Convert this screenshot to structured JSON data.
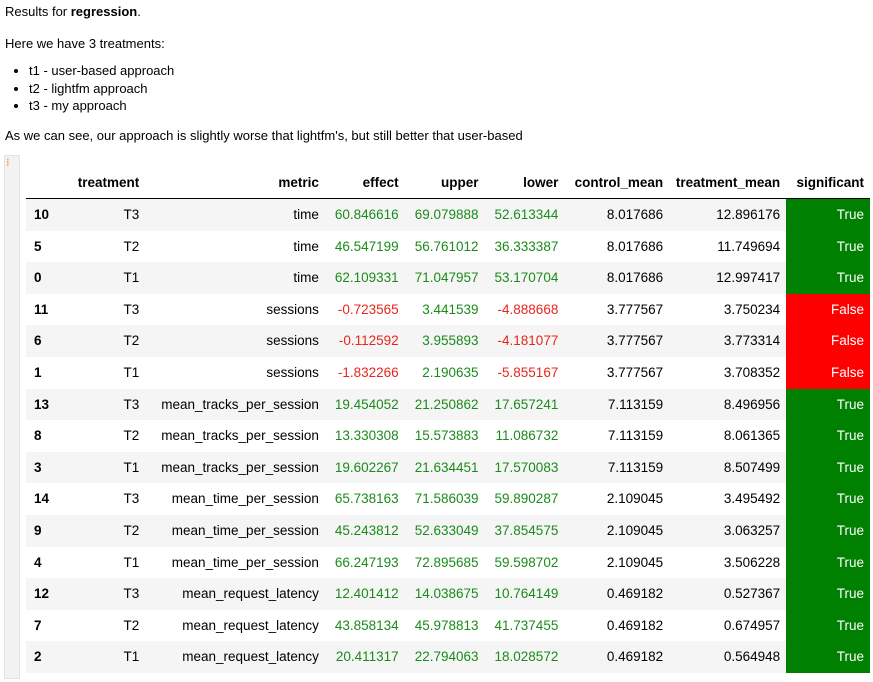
{
  "intro": {
    "line1_prefix": "Results for ",
    "line1_bold": "regression",
    "line1_suffix": ".",
    "line2": "Here we have 3 treatments:",
    "treatments": [
      "t1 - user-based approach",
      "t2 - lightfm approach",
      "t3 - my approach"
    ],
    "line3": "As we can see, our approach is slightly worse that lightfm's, but still better that user-based"
  },
  "colors": {
    "positive": "#1a8c1a",
    "negative": "#e8261c",
    "significant_true": "#008000",
    "significant_false": "#ff0000"
  },
  "table": {
    "headers": [
      "",
      "treatment",
      "metric",
      "effect",
      "upper",
      "lower",
      "control_mean",
      "treatment_mean",
      "significant"
    ],
    "rows": [
      {
        "idx": "10",
        "treatment": "T3",
        "metric": "time",
        "effect": "60.846616",
        "upper": "69.079888",
        "lower": "52.613344",
        "control_mean": "8.017686",
        "treatment_mean": "12.896176",
        "significant": "True"
      },
      {
        "idx": "5",
        "treatment": "T2",
        "metric": "time",
        "effect": "46.547199",
        "upper": "56.761012",
        "lower": "36.333387",
        "control_mean": "8.017686",
        "treatment_mean": "11.749694",
        "significant": "True"
      },
      {
        "idx": "0",
        "treatment": "T1",
        "metric": "time",
        "effect": "62.109331",
        "upper": "71.047957",
        "lower": "53.170704",
        "control_mean": "8.017686",
        "treatment_mean": "12.997417",
        "significant": "True"
      },
      {
        "idx": "11",
        "treatment": "T3",
        "metric": "sessions",
        "effect": "-0.723565",
        "upper": "3.441539",
        "lower": "-4.888668",
        "control_mean": "3.777567",
        "treatment_mean": "3.750234",
        "significant": "False"
      },
      {
        "idx": "6",
        "treatment": "T2",
        "metric": "sessions",
        "effect": "-0.112592",
        "upper": "3.955893",
        "lower": "-4.181077",
        "control_mean": "3.777567",
        "treatment_mean": "3.773314",
        "significant": "False"
      },
      {
        "idx": "1",
        "treatment": "T1",
        "metric": "sessions",
        "effect": "-1.832266",
        "upper": "2.190635",
        "lower": "-5.855167",
        "control_mean": "3.777567",
        "treatment_mean": "3.708352",
        "significant": "False"
      },
      {
        "idx": "13",
        "treatment": "T3",
        "metric": "mean_tracks_per_session",
        "effect": "19.454052",
        "upper": "21.250862",
        "lower": "17.657241",
        "control_mean": "7.113159",
        "treatment_mean": "8.496956",
        "significant": "True"
      },
      {
        "idx": "8",
        "treatment": "T2",
        "metric": "mean_tracks_per_session",
        "effect": "13.330308",
        "upper": "15.573883",
        "lower": "11.086732",
        "control_mean": "7.113159",
        "treatment_mean": "8.061365",
        "significant": "True"
      },
      {
        "idx": "3",
        "treatment": "T1",
        "metric": "mean_tracks_per_session",
        "effect": "19.602267",
        "upper": "21.634451",
        "lower": "17.570083",
        "control_mean": "7.113159",
        "treatment_mean": "8.507499",
        "significant": "True"
      },
      {
        "idx": "14",
        "treatment": "T3",
        "metric": "mean_time_per_session",
        "effect": "65.738163",
        "upper": "71.586039",
        "lower": "59.890287",
        "control_mean": "2.109045",
        "treatment_mean": "3.495492",
        "significant": "True"
      },
      {
        "idx": "9",
        "treatment": "T2",
        "metric": "mean_time_per_session",
        "effect": "45.243812",
        "upper": "52.633049",
        "lower": "37.854575",
        "control_mean": "2.109045",
        "treatment_mean": "3.063257",
        "significant": "True"
      },
      {
        "idx": "4",
        "treatment": "T1",
        "metric": "mean_time_per_session",
        "effect": "66.247193",
        "upper": "72.895685",
        "lower": "59.598702",
        "control_mean": "2.109045",
        "treatment_mean": "3.506228",
        "significant": "True"
      },
      {
        "idx": "12",
        "treatment": "T3",
        "metric": "mean_request_latency",
        "effect": "12.401412",
        "upper": "14.038675",
        "lower": "10.764149",
        "control_mean": "0.469182",
        "treatment_mean": "0.527367",
        "significant": "True"
      },
      {
        "idx": "7",
        "treatment": "T2",
        "metric": "mean_request_latency",
        "effect": "43.858134",
        "upper": "45.978813",
        "lower": "41.737455",
        "control_mean": "0.469182",
        "treatment_mean": "0.674957",
        "significant": "True"
      },
      {
        "idx": "2",
        "treatment": "T1",
        "metric": "mean_request_latency",
        "effect": "20.411317",
        "upper": "22.794063",
        "lower": "18.028572",
        "control_mean": "0.469182",
        "treatment_mean": "0.564948",
        "significant": "True"
      }
    ]
  }
}
